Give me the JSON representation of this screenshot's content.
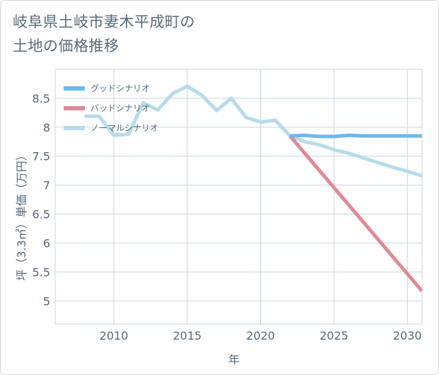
{
  "page": {
    "title_line1": "岐阜県土岐市妻木平成町の",
    "title_line2": "土地の価格推移"
  },
  "colors": {
    "good": "#6cb8ec",
    "bad": "#de8a94",
    "normal": "#b7dbeb",
    "grid": "#c7d5e3",
    "text": "#56687a"
  },
  "chart_data": {
    "type": "line",
    "xlabel": "年",
    "ylabel": "坪（3.3㎡）単価（万円）",
    "xlim": [
      2006,
      2031
    ],
    "ylim": [
      4.6,
      9.0
    ],
    "x_ticks": [
      2010,
      2015,
      2020,
      2025,
      2030
    ],
    "x_tick_labels": [
      "2010",
      "2015",
      "2020",
      "2025",
      "2030"
    ],
    "y_ticks": [
      5,
      5.5,
      6,
      6.5,
      7,
      7.5,
      8,
      8.5
    ],
    "y_tick_labels": [
      "5",
      "5.5",
      "6",
      "6.5",
      "7",
      "7.5",
      "8",
      "8.5"
    ],
    "legend": [
      "グッドシナリオ",
      "バッドシナリオ",
      "ノーマルシナリオ"
    ],
    "series": [
      {
        "name": "グッドシナリオ",
        "x": [
          2022,
          2023,
          2024,
          2025,
          2026,
          2027,
          2028,
          2029,
          2030,
          2031
        ],
        "y": [
          7.85,
          7.86,
          7.84,
          7.84,
          7.86,
          7.85,
          7.85,
          7.85,
          7.85,
          7.85
        ]
      },
      {
        "name": "バッドシナリオ",
        "x": [
          2022,
          2031
        ],
        "y": [
          7.85,
          5.17
        ]
      },
      {
        "name": "ノーマルシナリオ",
        "x": [
          2008,
          2009,
          2010,
          2011,
          2012,
          2013,
          2014,
          2015,
          2016,
          2017,
          2018,
          2019,
          2020,
          2021,
          2022,
          2023,
          2024,
          2025,
          2026,
          2027,
          2028,
          2029,
          2030,
          2031
        ],
        "y": [
          8.19,
          8.19,
          7.86,
          7.88,
          8.42,
          8.3,
          8.58,
          8.71,
          8.55,
          8.29,
          8.5,
          8.17,
          8.09,
          8.12,
          7.85,
          7.75,
          7.7,
          7.61,
          7.55,
          7.47,
          7.39,
          7.31,
          7.24,
          7.16
        ]
      }
    ]
  }
}
